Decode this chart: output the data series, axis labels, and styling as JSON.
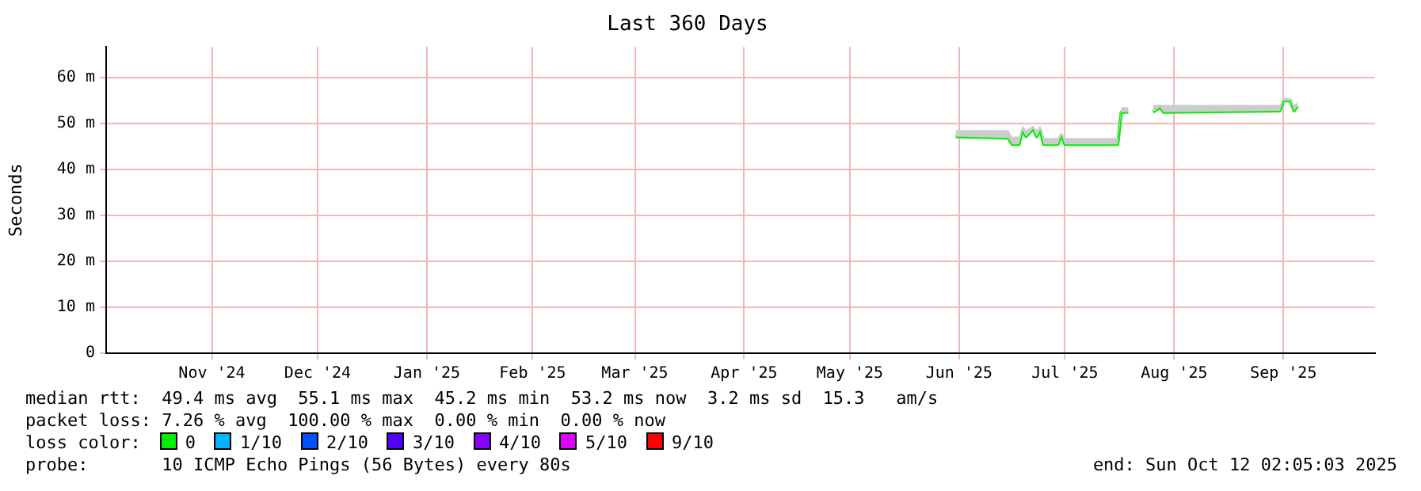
{
  "chart_data": {
    "type": "line",
    "title": "Last 360 Days",
    "ylabel": "Seconds",
    "x": [
      "2025-06-15",
      "2025-06-30",
      "2025-07-01",
      "2025-07-03",
      "2025-07-04",
      "2025-07-05",
      "2025-07-07",
      "2025-07-08",
      "2025-07-09",
      "2025-07-10",
      "2025-07-14",
      "2025-07-15",
      "2025-07-16",
      "2025-07-31",
      "2025-08-01",
      "2025-08-03",
      "2025-08-06",
      "2025-08-10",
      "2025-08-12",
      "2025-08-13",
      "2025-09-15",
      "2025-09-16",
      "2025-09-18",
      "2025-09-19",
      "2025-09-20"
    ],
    "series": [
      {
        "name": "0",
        "color": "#00ee00",
        "values": [
          47.1,
          46.8,
          45.4,
          45.4,
          48.5,
          47.1,
          48.8,
          47.1,
          48.5,
          45.4,
          45.4,
          47.4,
          45.4,
          45.4,
          52.4,
          52.4,
          null,
          52.4,
          53.5,
          52.4,
          52.7,
          54.9,
          54.9,
          52.7,
          53.7
        ],
        "lower": [
          47.1,
          46.8,
          45.4,
          45.4,
          48.5,
          47.1,
          48.8,
          47.1,
          48.5,
          45.4,
          45.4,
          47.4,
          45.4,
          45.4,
          52.4,
          52.4,
          null,
          52.4,
          53.5,
          52.4,
          52.7,
          54.9,
          54.9,
          52.7,
          53.7
        ],
        "upper": [
          48.5,
          48.5,
          47.1,
          47.1,
          49.5,
          48.5,
          49.5,
          48.5,
          49.5,
          46.8,
          46.8,
          48.0,
          46.8,
          46.8,
          53.5,
          53.5,
          null,
          54.0,
          54.0,
          54.0,
          54.0,
          55.5,
          55.5,
          54.0,
          54.5
        ]
      },
      {
        "name": "1/10",
        "color": "#00b4ff",
        "values": [
          null,
          null,
          null,
          null,
          null,
          null,
          null,
          null,
          null,
          null,
          null,
          null,
          null,
          null,
          null,
          null,
          null,
          null,
          null,
          null,
          null,
          null,
          null,
          null,
          null
        ]
      },
      {
        "name": "2/10",
        "color": "#0050ff",
        "values": [
          null,
          null,
          null,
          null,
          null,
          null,
          null,
          null,
          null,
          null,
          null,
          null,
          null,
          null,
          null,
          null,
          null,
          null,
          null,
          null,
          null,
          null,
          null,
          null,
          null
        ]
      },
      {
        "name": "3/10",
        "color": "#5500ff",
        "values": [
          null,
          null,
          null,
          null,
          null,
          null,
          null,
          null,
          null,
          null,
          null,
          null,
          null,
          null,
          null,
          null,
          null,
          null,
          null,
          null,
          null,
          null,
          null,
          null,
          null
        ]
      },
      {
        "name": "4/10",
        "color": "#8800ff",
        "values": [
          null,
          null,
          null,
          null,
          null,
          null,
          null,
          null,
          null,
          null,
          null,
          null,
          null,
          null,
          null,
          null,
          null,
          null,
          null,
          null,
          null,
          null,
          null,
          null,
          null
        ]
      },
      {
        "name": "5/10",
        "color": "#dd00ff",
        "values": [
          null,
          null,
          null,
          null,
          null,
          null,
          null,
          null,
          null,
          null,
          null,
          null,
          null,
          null,
          null,
          null,
          null,
          null,
          null,
          null,
          null,
          null,
          null,
          null,
          null
        ]
      },
      {
        "name": "9/10",
        "color": "#ff0000",
        "values": [
          null,
          null,
          null,
          null,
          null,
          null,
          null,
          null,
          null,
          null,
          null,
          null,
          null,
          null,
          null,
          null,
          null,
          null,
          null,
          null,
          null,
          null,
          null,
          null,
          null
        ]
      }
    ],
    "legend": "bottom",
    "legend_title": "loss color:",
    "xlim": [
      "2024-10-17",
      "2025-10-12"
    ],
    "xticks": [
      {
        "value": "2024-11-16",
        "label": "Nov '24"
      },
      {
        "value": "2024-12-16",
        "label": "Dec '24"
      },
      {
        "value": "2025-01-16",
        "label": "Jan '25"
      },
      {
        "value": "2025-02-15",
        "label": "Feb '25"
      },
      {
        "value": "2025-03-16",
        "label": "Mar '25"
      },
      {
        "value": "2025-04-16",
        "label": "Apr '25"
      },
      {
        "value": "2025-05-16",
        "label": "May '25"
      },
      {
        "value": "2025-06-16",
        "label": "Jun '25"
      },
      {
        "value": "2025-07-16",
        "label": "Jul '25"
      },
      {
        "value": "2025-08-16",
        "label": "Aug '25"
      },
      {
        "value": "2025-09-16",
        "label": "Sep '25"
      }
    ],
    "ylim": [
      0,
      66.6
    ],
    "yticks": [
      {
        "value": 0,
        "label": "0"
      },
      {
        "value": 10,
        "label": "10 m"
      },
      {
        "value": 20,
        "label": "20 m"
      },
      {
        "value": 30,
        "label": "30 m"
      },
      {
        "value": 40,
        "label": "40 m"
      },
      {
        "value": 50,
        "label": "50 m"
      },
      {
        "value": 60,
        "label": "60 m"
      }
    ],
    "grid": true,
    "marker": "none",
    "line_style": "solid",
    "annotations": [
      "median rtt:  49.4 ms avg  55.1 ms max  45.2 ms min  53.2 ms now  3.2 ms sd  15.3   am/s",
      "packet loss: 7.26 % avg  100.00 % max  0.00 % min  0.00 % now",
      "probe:       10 ICMP Echo Pings (56 Bytes) every 80s",
      "end: Sun Oct 12 02:05:03 2025"
    ]
  }
}
